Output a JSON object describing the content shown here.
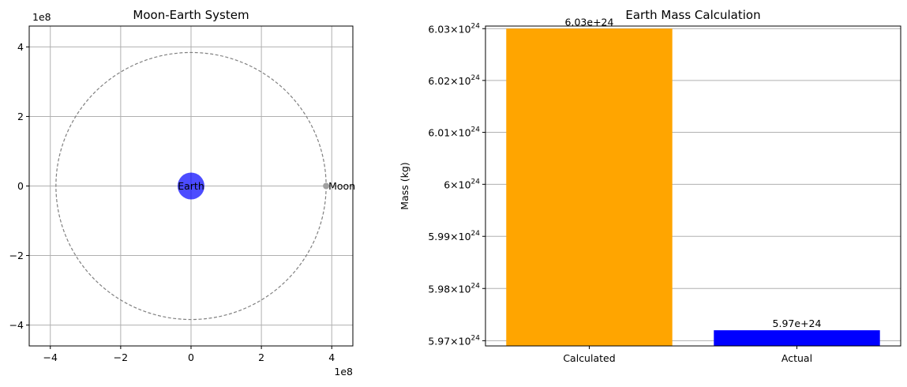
{
  "chart_data": [
    {
      "type": "scatter",
      "title": "Moon-Earth System",
      "xlabel": "",
      "ylabel": "",
      "x_offset_label": "1e8",
      "y_offset_label": "1e8",
      "xlim": [
        -4.6,
        4.6
      ],
      "ylim": [
        -4.6,
        4.6
      ],
      "xticks": [
        -4,
        -2,
        0,
        2,
        4
      ],
      "yticks": [
        -4,
        -2,
        0,
        2,
        4
      ],
      "xtick_labels": [
        "−4",
        "−2",
        "0",
        "2",
        "4"
      ],
      "ytick_labels": [
        "−4",
        "−2",
        "0",
        "2",
        "4"
      ],
      "grid": true,
      "orbit": {
        "radius": 3.84,
        "style": "dashed",
        "color": "#808080"
      },
      "bodies": [
        {
          "name": "Earth",
          "x": 0,
          "y": 0,
          "color": "#0000ff",
          "alpha": 0.7
        },
        {
          "name": "Moon",
          "x": 3.84,
          "y": 0,
          "color": "#a0a0a0",
          "alpha": 1.0
        }
      ]
    },
    {
      "type": "bar",
      "title": "Earth Mass Calculation",
      "xlabel": "",
      "ylabel": "Mass (kg)",
      "scale": "log",
      "categories": [
        "Calculated",
        "Actual"
      ],
      "values": [
        6.03e+24,
        5.972e+24
      ],
      "data_labels": [
        "6.03e+24",
        "5.97e+24"
      ],
      "colors": [
        "#ffa500",
        "#0000ff"
      ],
      "ylim": [
        5.969e+24,
        6.0305e+24
      ],
      "yticks": [
        5.97e+24,
        5.98e+24,
        5.99e+24,
        6e+24,
        6.01e+24,
        6.02e+24,
        6.03e+24
      ],
      "ytick_mantissas": [
        "5.97",
        "5.98",
        "5.99",
        "6",
        "6.01",
        "6.02",
        "6.03"
      ],
      "ytick_base": "10",
      "ytick_exponent": "24",
      "grid": "y"
    }
  ]
}
